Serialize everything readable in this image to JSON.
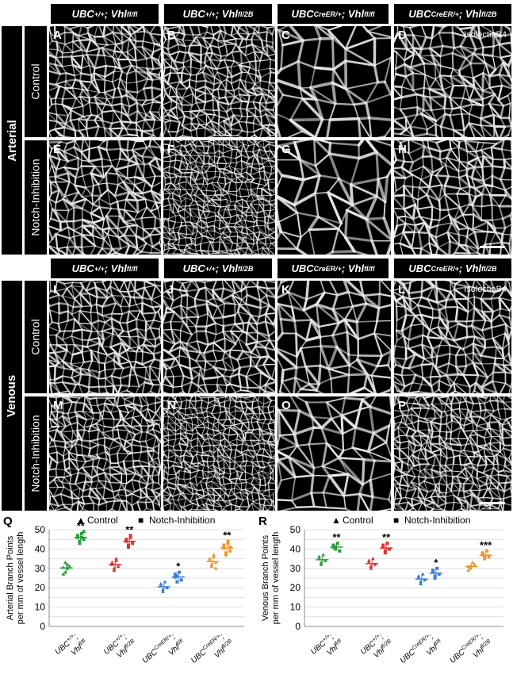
{
  "genotype_headers": [
    {
      "base": "UBC",
      "sup1": "+/+",
      "mid": "; Vhl",
      "sup2": "fl/fl"
    },
    {
      "base": "UBC",
      "sup1": "+/+",
      "mid": "; Vhl",
      "sup2": "fl/2B"
    },
    {
      "base": "UBC",
      "sup1": "CreER/+",
      "mid": "; Vhl",
      "sup2": "fl/fl"
    },
    {
      "base": "UBC",
      "sup1": "CreER/+",
      "mid": "; Vhl",
      "sup2": "fl/2B"
    }
  ],
  "sections": [
    {
      "label": "Arterial",
      "rows": [
        "Control",
        "Notch-Inhibition"
      ],
      "letters": [
        [
          "A",
          "B",
          "C",
          "D"
        ],
        [
          "E",
          "F",
          "G",
          "H"
        ]
      ]
    },
    {
      "label": "Venous",
      "rows": [
        "Control",
        "Notch-Inhibition"
      ],
      "letters": [
        [
          "I",
          "J",
          "K",
          "L"
        ],
        [
          "M",
          "N",
          "O",
          "P"
        ]
      ]
    }
  ],
  "stain_label": "IsolectinB4",
  "chart_data": [
    {
      "type": "scatter",
      "panel_letter": "Q",
      "ylabel_line1": "Arterial Branch Points",
      "ylabel_line2": "per mm of vessel length",
      "ylim": [
        0,
        50
      ],
      "yticks": [
        0,
        5,
        10,
        15,
        20,
        25,
        30,
        35,
        40,
        45,
        50
      ],
      "legend": [
        "Control",
        "Notch-Inhibition"
      ],
      "groups": [
        {
          "label_base": "UBC",
          "label_sup": "+/+",
          "label_line2": "Vhl",
          "label_sup2": "fl/fl",
          "color": "#2a9d3a",
          "control": [
            30.5,
            28,
            32,
            31,
            27,
            33,
            30
          ],
          "notch": [
            46,
            44,
            48,
            45,
            47,
            43,
            46,
            49
          ],
          "sig": "**"
        },
        {
          "label_base": "UBC",
          "label_sup": "+/+",
          "label_line2": "Vhl",
          "label_sup2": "fl/2B",
          "color": "#e03030",
          "control": [
            32,
            30,
            34,
            31,
            33,
            29,
            35
          ],
          "notch": [
            44,
            42,
            46,
            43,
            45,
            41,
            47
          ],
          "sig": "**"
        },
        {
          "label_base": "UBC",
          "label_sup": "CreER/+",
          "label_line2": "Vhl",
          "label_sup2": "fl/fl",
          "color": "#3a7fd0",
          "control": [
            21,
            19,
            23,
            20,
            22,
            18
          ],
          "notch": [
            25.5,
            23,
            28,
            24,
            27,
            26
          ],
          "sig": "*"
        },
        {
          "label_base": "UBC",
          "label_sup": "CreER/+",
          "label_line2": "Vhl",
          "label_sup2": "fl/2B",
          "color": "#f0962a",
          "control": [
            34,
            31,
            36,
            33,
            35,
            32,
            37,
            30
          ],
          "notch": [
            40.5,
            38,
            43,
            39,
            42,
            37,
            44,
            41
          ],
          "sig": "**"
        }
      ]
    },
    {
      "type": "scatter",
      "panel_letter": "R",
      "ylabel_line1": "Venous Branch Points",
      "ylabel_line2": "per mm of vessel length",
      "ylim": [
        0,
        50
      ],
      "yticks": [
        0,
        5,
        10,
        15,
        20,
        25,
        30,
        35,
        40,
        45,
        50
      ],
      "legend": [
        "Control",
        "Notch-Inhibition"
      ],
      "groups": [
        {
          "label_base": "UBC",
          "label_sup": "+/+",
          "label_line2": "Vhl",
          "label_sup2": "fl/fl",
          "color": "#2a9d3a",
          "control": [
            35,
            33,
            37,
            34,
            36,
            32
          ],
          "notch": [
            41,
            40,
            43,
            39,
            42,
            41
          ],
          "sig": "**"
        },
        {
          "label_base": "UBC",
          "label_sup": "+/+",
          "label_line2": "Vhl",
          "label_sup2": "fl/2B",
          "color": "#e03030",
          "control": [
            33,
            31,
            35,
            32,
            34,
            30
          ],
          "notch": [
            41,
            39,
            43,
            40,
            42,
            38
          ],
          "sig": "**"
        },
        {
          "label_base": "UBC",
          "label_sup": "CreER/+",
          "label_line2": "Vhl",
          "label_sup2": "fl/fl",
          "color": "#3a7fd0",
          "control": [
            25,
            23,
            27,
            24,
            26,
            22
          ],
          "notch": [
            28,
            26,
            30,
            27,
            29,
            25
          ],
          "sig": "*"
        },
        {
          "label_base": "UBC",
          "label_sup": "CreER/+",
          "label_line2": "Vhl",
          "label_sup2": "fl/2B",
          "color": "#f0962a",
          "control": [
            31,
            30,
            33,
            32,
            29,
            31
          ],
          "notch": [
            37,
            35,
            39,
            36,
            38,
            36
          ],
          "sig": "***"
        }
      ]
    }
  ]
}
